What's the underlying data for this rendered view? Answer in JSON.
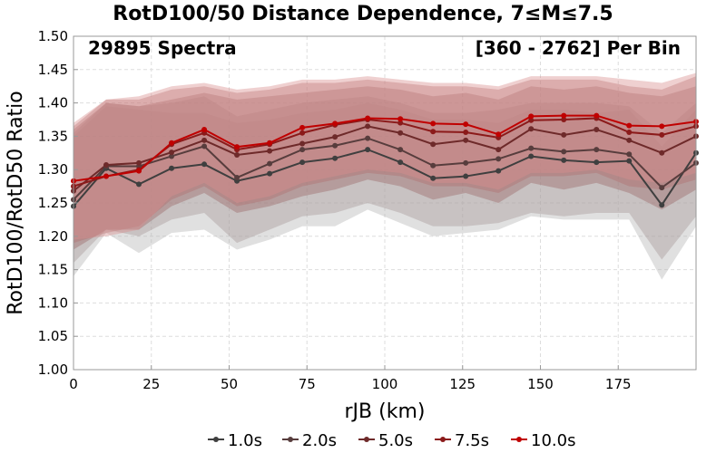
{
  "chart_data": {
    "type": "line",
    "title": "RotD100/50 Distance Dependence, 7≤M≤7.5",
    "xlabel": "rJB (km)",
    "ylabel": "RotD100/RotD50 Ratio",
    "xlim": [
      0,
      200
    ],
    "ylim": [
      1.0,
      1.5
    ],
    "xticks": [
      0,
      25,
      50,
      75,
      100,
      125,
      150,
      175
    ],
    "yticks": [
      1.0,
      1.05,
      1.1,
      1.15,
      1.2,
      1.25,
      1.3,
      1.35,
      1.4,
      1.45,
      1.5
    ],
    "grid": true,
    "legend_position": "bottom",
    "annotations": {
      "left": "29895 Spectra",
      "right": "[360 - 2762] Per Bin"
    },
    "x": [
      0,
      10.5,
      21,
      31.5,
      42,
      52.5,
      63,
      73.5,
      84,
      94.5,
      105,
      115.5,
      126,
      136.5,
      147,
      157.5,
      168,
      178.5,
      189,
      200
    ],
    "series": [
      {
        "name": "1.0s",
        "color": "#3f3f3f",
        "band_color": "#b4b4b4",
        "values": [
          1.245,
          1.302,
          1.278,
          1.302,
          1.308,
          1.283,
          1.294,
          1.311,
          1.317,
          1.33,
          1.311,
          1.287,
          1.29,
          1.298,
          1.32,
          1.314,
          1.311,
          1.313,
          1.247,
          1.325
        ],
        "upper": [
          1.35,
          1.395,
          1.39,
          1.385,
          1.385,
          1.37,
          1.375,
          1.385,
          1.39,
          1.4,
          1.39,
          1.375,
          1.375,
          1.37,
          1.39,
          1.39,
          1.385,
          1.39,
          1.335,
          1.39
        ],
        "lower": [
          1.14,
          1.205,
          1.175,
          1.205,
          1.21,
          1.18,
          1.195,
          1.215,
          1.215,
          1.24,
          1.22,
          1.2,
          1.205,
          1.21,
          1.23,
          1.225,
          1.225,
          1.225,
          1.135,
          1.215
        ]
      },
      {
        "name": "2.0s",
        "color": "#573d3d",
        "band_color": "#a89999",
        "values": [
          1.255,
          1.305,
          1.305,
          1.32,
          1.335,
          1.288,
          1.309,
          1.33,
          1.336,
          1.347,
          1.33,
          1.306,
          1.31,
          1.316,
          1.332,
          1.327,
          1.33,
          1.323,
          1.273,
          1.31
        ],
        "upper": [
          1.355,
          1.4,
          1.395,
          1.4,
          1.41,
          1.38,
          1.39,
          1.4,
          1.405,
          1.41,
          1.4,
          1.385,
          1.385,
          1.39,
          1.4,
          1.4,
          1.4,
          1.395,
          1.355,
          1.4
        ],
        "lower": [
          1.16,
          1.21,
          1.2,
          1.225,
          1.235,
          1.19,
          1.21,
          1.23,
          1.235,
          1.25,
          1.235,
          1.215,
          1.215,
          1.22,
          1.235,
          1.23,
          1.235,
          1.235,
          1.165,
          1.23
        ]
      },
      {
        "name": "5.0s",
        "color": "#6e2a2a",
        "band_color": "#9a6a6a",
        "values": [
          1.268,
          1.307,
          1.31,
          1.326,
          1.344,
          1.322,
          1.328,
          1.339,
          1.349,
          1.365,
          1.355,
          1.338,
          1.344,
          1.33,
          1.361,
          1.352,
          1.36,
          1.344,
          1.325,
          1.35
        ],
        "upper": [
          1.36,
          1.4,
          1.395,
          1.405,
          1.415,
          1.405,
          1.41,
          1.415,
          1.42,
          1.425,
          1.42,
          1.41,
          1.415,
          1.405,
          1.425,
          1.42,
          1.425,
          1.415,
          1.41,
          1.425
        ],
        "lower": [
          1.18,
          1.21,
          1.21,
          1.245,
          1.265,
          1.235,
          1.245,
          1.26,
          1.27,
          1.285,
          1.275,
          1.255,
          1.265,
          1.25,
          1.28,
          1.27,
          1.28,
          1.265,
          1.24,
          1.27
        ]
      },
      {
        "name": "7.5s",
        "color": "#8b1a1a",
        "band_color": "#b07070",
        "values": [
          1.275,
          1.29,
          1.3,
          1.338,
          1.355,
          1.33,
          1.338,
          1.355,
          1.367,
          1.375,
          1.37,
          1.357,
          1.356,
          1.348,
          1.374,
          1.375,
          1.377,
          1.356,
          1.352,
          1.365
        ],
        "upper": [
          1.365,
          1.405,
          1.405,
          1.42,
          1.425,
          1.415,
          1.42,
          1.43,
          1.43,
          1.435,
          1.43,
          1.425,
          1.425,
          1.42,
          1.435,
          1.435,
          1.435,
          1.425,
          1.42,
          1.44
        ],
        "lower": [
          1.19,
          1.205,
          1.215,
          1.255,
          1.275,
          1.245,
          1.255,
          1.275,
          1.285,
          1.295,
          1.29,
          1.275,
          1.275,
          1.265,
          1.29,
          1.29,
          1.295,
          1.275,
          1.27,
          1.285
        ]
      },
      {
        "name": "10.0s",
        "color": "#c00000",
        "band_color": "#d89090",
        "values": [
          1.283,
          1.29,
          1.298,
          1.34,
          1.36,
          1.334,
          1.34,
          1.363,
          1.369,
          1.377,
          1.376,
          1.369,
          1.368,
          1.353,
          1.38,
          1.381,
          1.381,
          1.366,
          1.365,
          1.372
        ],
        "upper": [
          1.37,
          1.405,
          1.41,
          1.425,
          1.43,
          1.42,
          1.425,
          1.435,
          1.435,
          1.44,
          1.435,
          1.43,
          1.43,
          1.425,
          1.44,
          1.44,
          1.44,
          1.435,
          1.43,
          1.445
        ],
        "lower": [
          1.195,
          1.2,
          1.21,
          1.26,
          1.28,
          1.25,
          1.26,
          1.28,
          1.29,
          1.3,
          1.295,
          1.28,
          1.28,
          1.27,
          1.295,
          1.295,
          1.3,
          1.285,
          1.28,
          1.295
        ]
      }
    ]
  }
}
